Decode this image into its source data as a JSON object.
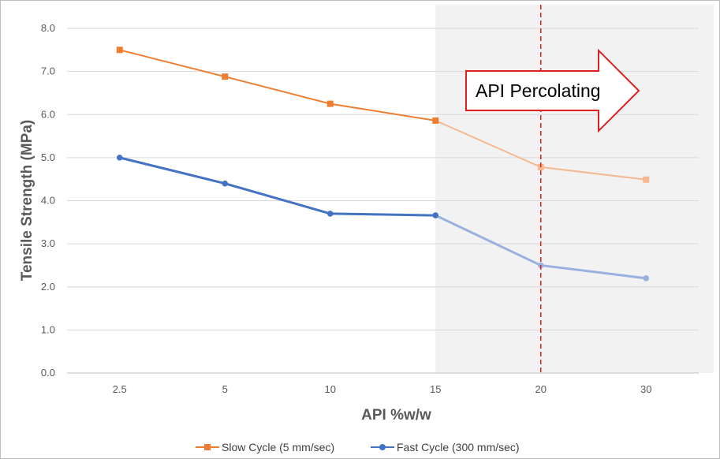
{
  "chart_data": {
    "type": "line",
    "xlabel": "API %w/w",
    "ylabel": "Tensile Strength (MPa)",
    "categories": [
      "2.5",
      "5",
      "10",
      "15",
      "20",
      "30"
    ],
    "ylim": [
      0,
      8
    ],
    "yticks": [
      "0.0",
      "1.0",
      "2.0",
      "3.0",
      "4.0",
      "5.0",
      "6.0",
      "7.0",
      "8.0"
    ],
    "grid": true,
    "legend_position": "bottom",
    "series": [
      {
        "name": "Slow Cycle (5 mm/sec)",
        "values": [
          7.5,
          6.88,
          6.25,
          5.86,
          4.78,
          4.49
        ],
        "color": "#ED7D31",
        "marker": "square"
      },
      {
        "name": "Fast Cycle (300 mm/sec)",
        "values": [
          5.0,
          4.4,
          3.7,
          3.66,
          2.5,
          2.2
        ],
        "color": "#4472C4",
        "marker": "circle"
      }
    ],
    "annotation": {
      "text": "API Percolating",
      "shaded_region_from": "15",
      "dashed_line_at": "20",
      "arrow_color": "#E02020",
      "shade_color": "#F2F2F2"
    }
  }
}
